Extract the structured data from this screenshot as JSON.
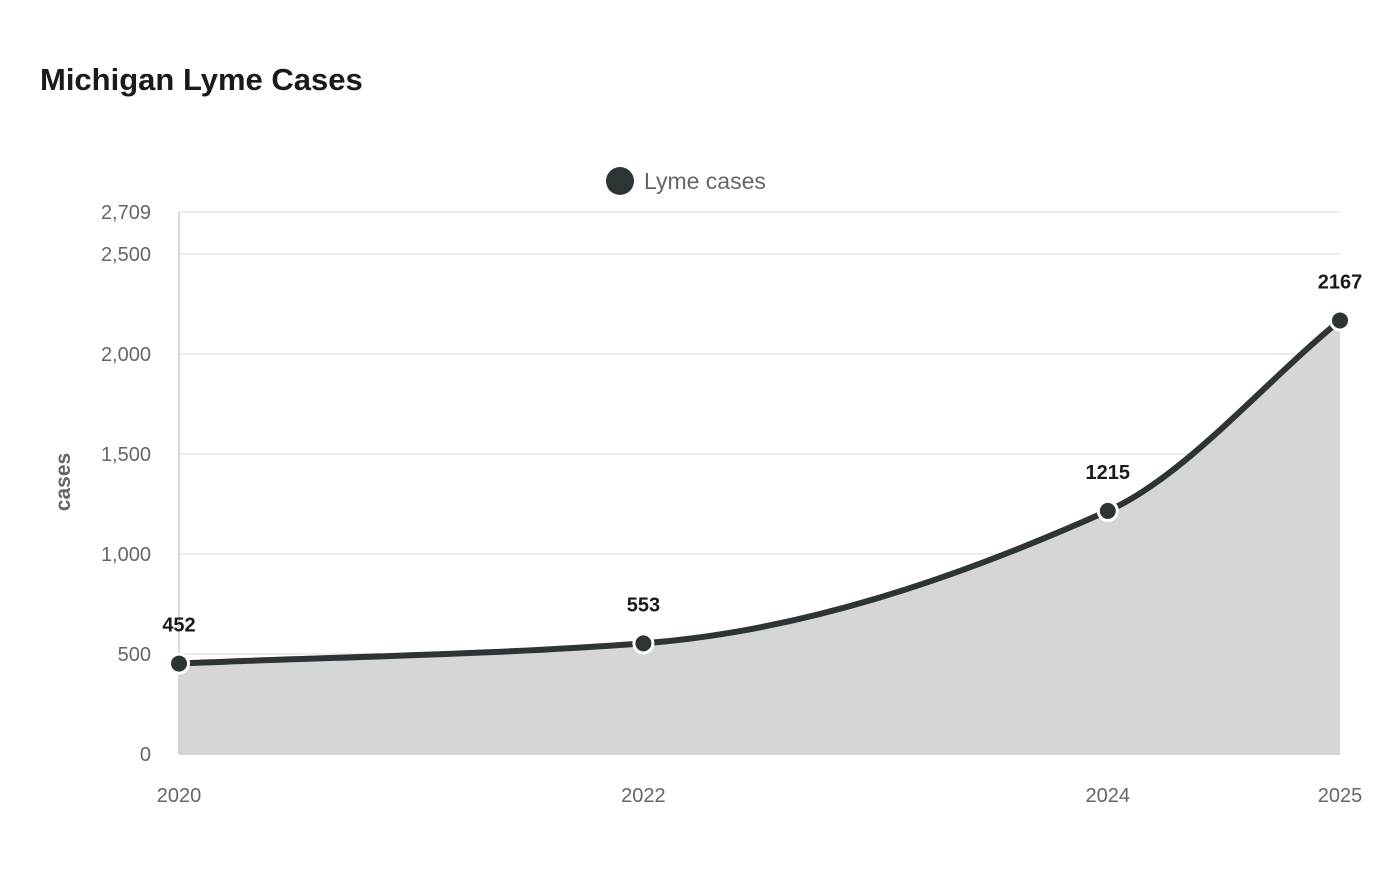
{
  "chart_data": {
    "type": "area",
    "title": "Michigan Lyme Cases",
    "ylabel": "cases",
    "xlabel": "",
    "x": [
      "2020",
      "2022",
      "2024",
      "2025"
    ],
    "x_values": [
      2020,
      2022,
      2024,
      2025
    ],
    "series": [
      {
        "name": "Lyme cases",
        "values": [
          452,
          553,
          1215,
          2167
        ],
        "color": "#2d3436",
        "fill_color": "#d5d7d6"
      }
    ],
    "data_labels": [
      "452",
      "553",
      "1215",
      "2167"
    ],
    "ylim": [
      0,
      2709
    ],
    "y_ticks": [
      0,
      500,
      1000,
      1500,
      2000,
      2500,
      2709
    ],
    "y_tick_labels": [
      "0",
      "500",
      "1,000",
      "1,500",
      "2,000",
      "2,500",
      "2,709"
    ],
    "xlim": [
      2020,
      2025
    ],
    "grid": true,
    "legend_position": "top-center",
    "colors": {
      "gridline": "#e6e6e6",
      "axis": "#cccccc",
      "point_stroke": "#ffffff"
    }
  }
}
